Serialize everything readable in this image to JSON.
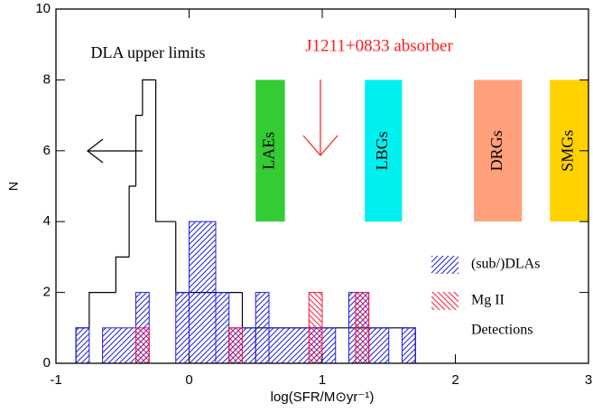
{
  "chart_data": {
    "type": "histogram",
    "xlabel": "log(SFR/M⊙yr⁻¹)",
    "ylabel": "N",
    "xlim": [
      -1,
      3
    ],
    "xticks": [
      -1,
      0,
      1,
      2,
      3
    ],
    "ylim": [
      0,
      10
    ],
    "yticks": [
      0,
      2,
      4,
      6,
      8,
      10
    ],
    "series": [
      {
        "name": "DLA upper limits",
        "color": "#000000",
        "style": "step",
        "bins": [
          -0.85,
          -0.75,
          -0.55,
          -0.45,
          -0.4,
          -0.35,
          -0.25,
          -0.1,
          0.4,
          1.7
        ],
        "values": [
          1,
          2,
          3,
          5,
          7,
          8,
          4,
          2,
          1
        ]
      },
      {
        "name": "(sub/)DLAs",
        "color": "#1f1fe0",
        "style": "hatch",
        "hatch": "/",
        "bins": [
          -0.85,
          -0.75,
          -0.65,
          -0.4,
          -0.3,
          -0.1,
          0,
          0.2,
          0.3,
          0.5,
          0.6,
          1.1,
          1.2,
          1.35,
          1.5,
          1.6,
          1.7
        ],
        "values": [
          1,
          0,
          1,
          2,
          0,
          2,
          4,
          2,
          1,
          2,
          1,
          0,
          2,
          1,
          0,
          1
        ]
      },
      {
        "name": "Mg II",
        "color": "#ff1a3c",
        "style": "hatch",
        "hatch": "\\",
        "bins": [
          -0.4,
          -0.3,
          0.3,
          0.4,
          0.9,
          1.0,
          1.25,
          1.35
        ],
        "values": [
          1,
          0,
          1,
          0,
          2,
          0,
          2
        ]
      }
    ],
    "legend_note": "Detections",
    "bands": [
      {
        "label": "LAEs",
        "color": "#33cc33",
        "x": [
          0.5,
          0.72
        ],
        "y": [
          4,
          8
        ]
      },
      {
        "label": "LBGs",
        "color": "#00f0f0",
        "x": [
          1.32,
          1.6
        ],
        "y": [
          4,
          8
        ]
      },
      {
        "label": "DRGs",
        "color": "#ffa07a",
        "x": [
          2.14,
          2.5
        ],
        "y": [
          4,
          8
        ]
      },
      {
        "label": "SMGs",
        "color": "#ffd200",
        "x": [
          2.71,
          3
        ],
        "y": [
          4,
          8
        ]
      }
    ],
    "annotations": [
      "DLA upper limits",
      "J1211+0833 absorber"
    ]
  }
}
